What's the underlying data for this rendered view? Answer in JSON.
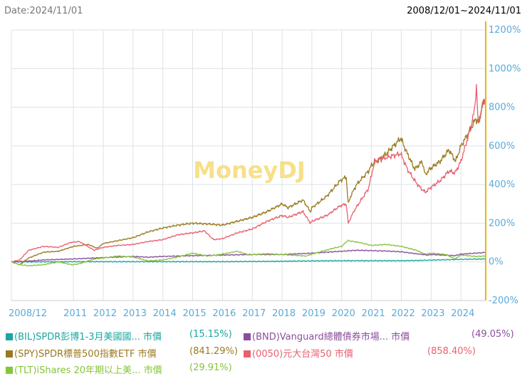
{
  "header": {
    "date_label": "Date:2024/11/01",
    "range_label": "2008/12/01~2024/11/01"
  },
  "chart_data": {
    "type": "line",
    "watermark": "MoneyDJ",
    "x_tick_labels": [
      "2008/12",
      "2011",
      "2012",
      "2013",
      "2014",
      "2015",
      "2016",
      "2017",
      "2018",
      "2019",
      "2020",
      "2021",
      "2022",
      "2023",
      "2024"
    ],
    "x_range": [
      2008.92,
      2024.83
    ],
    "y_tick_labels": [
      "1200%",
      "1000%",
      "800%",
      "600%",
      "400%",
      "200%",
      "0%",
      "-200%"
    ],
    "y_ticks": [
      1200,
      1000,
      800,
      600,
      400,
      200,
      0,
      -200
    ],
    "ylim": [
      -200,
      1200
    ],
    "grid": true,
    "colors": {
      "bil": "#1aa6a0",
      "bnd": "#8a4f9c",
      "spy": "#9a7a1e",
      "tw50": "#e8606f",
      "tlt": "#86c43a",
      "y_axis": "#f0b400",
      "y_tick_text": "#5aaad8",
      "x_tick_text": "#5aaad8",
      "grid": "#dde2e6",
      "watermark": "#f7e08a"
    },
    "series": [
      {
        "key": "bil",
        "name": "(BIL)SPDR彭博1-3月美國國... 市價",
        "pct_label": "(15.15%)",
        "points": [
          [
            2008.92,
            0
          ],
          [
            2010,
            0
          ],
          [
            2011,
            1
          ],
          [
            2012,
            1
          ],
          [
            2013,
            1
          ],
          [
            2014,
            1
          ],
          [
            2015,
            1
          ],
          [
            2016,
            1
          ],
          [
            2017,
            2
          ],
          [
            2018,
            3
          ],
          [
            2019,
            5
          ],
          [
            2020,
            6
          ],
          [
            2021,
            6
          ],
          [
            2022,
            6
          ],
          [
            2022.5,
            7
          ],
          [
            2023,
            9
          ],
          [
            2023.5,
            11
          ],
          [
            2024,
            13
          ],
          [
            2024.83,
            15
          ]
        ]
      },
      {
        "key": "bnd",
        "name": "(BND)Vanguard總體債券市場... 市價",
        "pct_label": "(49.05%)",
        "points": [
          [
            2008.92,
            0
          ],
          [
            2009.5,
            4
          ],
          [
            2010,
            10
          ],
          [
            2011,
            15
          ],
          [
            2012,
            22
          ],
          [
            2013,
            28
          ],
          [
            2013.5,
            24
          ],
          [
            2014,
            28
          ],
          [
            2015,
            32
          ],
          [
            2016,
            35
          ],
          [
            2017,
            38
          ],
          [
            2018,
            38
          ],
          [
            2019,
            45
          ],
          [
            2020,
            55
          ],
          [
            2020.5,
            60
          ],
          [
            2021,
            58
          ],
          [
            2021.5,
            56
          ],
          [
            2022,
            52
          ],
          [
            2022.5,
            42
          ],
          [
            2022.9,
            35
          ],
          [
            2023,
            38
          ],
          [
            2023.8,
            32
          ],
          [
            2024,
            40
          ],
          [
            2024.5,
            45
          ],
          [
            2024.83,
            49
          ]
        ]
      },
      {
        "key": "spy",
        "name": "(SPY)SPDR標普500指數ETF 市價",
        "pct_label": "(841.29%)",
        "points": [
          [
            2008.92,
            0
          ],
          [
            2009.2,
            -15
          ],
          [
            2009.5,
            20
          ],
          [
            2010,
            50
          ],
          [
            2010.5,
            55
          ],
          [
            2011,
            80
          ],
          [
            2011.5,
            90
          ],
          [
            2011.8,
            70
          ],
          [
            2012,
            95
          ],
          [
            2012.5,
            110
          ],
          [
            2013,
            125
          ],
          [
            2013.5,
            155
          ],
          [
            2014,
            175
          ],
          [
            2014.5,
            190
          ],
          [
            2015,
            200
          ],
          [
            2015.6,
            195
          ],
          [
            2016,
            190
          ],
          [
            2016.5,
            210
          ],
          [
            2017,
            230
          ],
          [
            2017.5,
            260
          ],
          [
            2018,
            300
          ],
          [
            2018.2,
            280
          ],
          [
            2018.7,
            320
          ],
          [
            2018.95,
            260
          ],
          [
            2019,
            280
          ],
          [
            2019.5,
            340
          ],
          [
            2019.95,
            420
          ],
          [
            2020.15,
            440
          ],
          [
            2020.22,
            300
          ],
          [
            2020.3,
            340
          ],
          [
            2020.5,
            400
          ],
          [
            2020.9,
            470
          ],
          [
            2021,
            500
          ],
          [
            2021.5,
            560
          ],
          [
            2021.98,
            640
          ],
          [
            2022.2,
            560
          ],
          [
            2022.45,
            480
          ],
          [
            2022.7,
            520
          ],
          [
            2022.8,
            450
          ],
          [
            2022.95,
            480
          ],
          [
            2023.3,
            520
          ],
          [
            2023.6,
            580
          ],
          [
            2023.82,
            520
          ],
          [
            2024,
            600
          ],
          [
            2024.3,
            680
          ],
          [
            2024.5,
            740
          ],
          [
            2024.6,
            720
          ],
          [
            2024.7,
            800
          ],
          [
            2024.83,
            841
          ]
        ]
      },
      {
        "key": "tw50",
        "name": "(0050)元大台灣50 市價",
        "pct_label": "(858.40%)",
        "points": [
          [
            2008.92,
            0
          ],
          [
            2009.2,
            10
          ],
          [
            2009.5,
            60
          ],
          [
            2010,
            80
          ],
          [
            2010.5,
            75
          ],
          [
            2010.9,
            100
          ],
          [
            2011.2,
            105
          ],
          [
            2011.7,
            60
          ],
          [
            2012,
            75
          ],
          [
            2012.5,
            85
          ],
          [
            2013,
            90
          ],
          [
            2013.5,
            105
          ],
          [
            2014,
            115
          ],
          [
            2014.5,
            140
          ],
          [
            2015,
            150
          ],
          [
            2015.4,
            160
          ],
          [
            2015.7,
            115
          ],
          [
            2016,
            120
          ],
          [
            2016.5,
            150
          ],
          [
            2017,
            170
          ],
          [
            2017.5,
            210
          ],
          [
            2018,
            240
          ],
          [
            2018.2,
            230
          ],
          [
            2018.7,
            260
          ],
          [
            2018.95,
            200
          ],
          [
            2019,
            210
          ],
          [
            2019.5,
            240
          ],
          [
            2019.95,
            290
          ],
          [
            2020.15,
            300
          ],
          [
            2020.22,
            200
          ],
          [
            2020.4,
            260
          ],
          [
            2020.9,
            380
          ],
          [
            2021.1,
            520
          ],
          [
            2021.5,
            540
          ],
          [
            2021.98,
            560
          ],
          [
            2022.2,
            480
          ],
          [
            2022.45,
            420
          ],
          [
            2022.6,
            390
          ],
          [
            2022.8,
            360
          ],
          [
            2022.95,
            380
          ],
          [
            2023.3,
            420
          ],
          [
            2023.6,
            470
          ],
          [
            2023.8,
            460
          ],
          [
            2024,
            520
          ],
          [
            2024.3,
            680
          ],
          [
            2024.45,
            780
          ],
          [
            2024.52,
            910
          ],
          [
            2024.58,
            700
          ],
          [
            2024.7,
            800
          ],
          [
            2024.83,
            858
          ]
        ]
      },
      {
        "key": "tlt",
        "name": "(TLT)iShares 20年期以上美... 市價",
        "pct_label": "(29.91%)",
        "points": [
          [
            2008.92,
            0
          ],
          [
            2009.2,
            -15
          ],
          [
            2009.5,
            -20
          ],
          [
            2010,
            -15
          ],
          [
            2010.5,
            0
          ],
          [
            2010.95,
            -15
          ],
          [
            2011.2,
            -10
          ],
          [
            2011.7,
            15
          ],
          [
            2012,
            20
          ],
          [
            2012.5,
            30
          ],
          [
            2013,
            25
          ],
          [
            2013.5,
            5
          ],
          [
            2014,
            10
          ],
          [
            2014.5,
            25
          ],
          [
            2015,
            45
          ],
          [
            2015.5,
            30
          ],
          [
            2016,
            40
          ],
          [
            2016.5,
            55
          ],
          [
            2016.9,
            35
          ],
          [
            2017,
            38
          ],
          [
            2017.5,
            42
          ],
          [
            2018,
            38
          ],
          [
            2018.8,
            30
          ],
          [
            2019,
            40
          ],
          [
            2019.7,
            70
          ],
          [
            2020,
            80
          ],
          [
            2020.2,
            110
          ],
          [
            2020.6,
            100
          ],
          [
            2021,
            85
          ],
          [
            2021.5,
            90
          ],
          [
            2022,
            80
          ],
          [
            2022.5,
            60
          ],
          [
            2022.8,
            40
          ],
          [
            2023,
            45
          ],
          [
            2023.5,
            38
          ],
          [
            2023.8,
            15
          ],
          [
            2024,
            35
          ],
          [
            2024.5,
            28
          ],
          [
            2024.83,
            30
          ]
        ]
      }
    ]
  }
}
